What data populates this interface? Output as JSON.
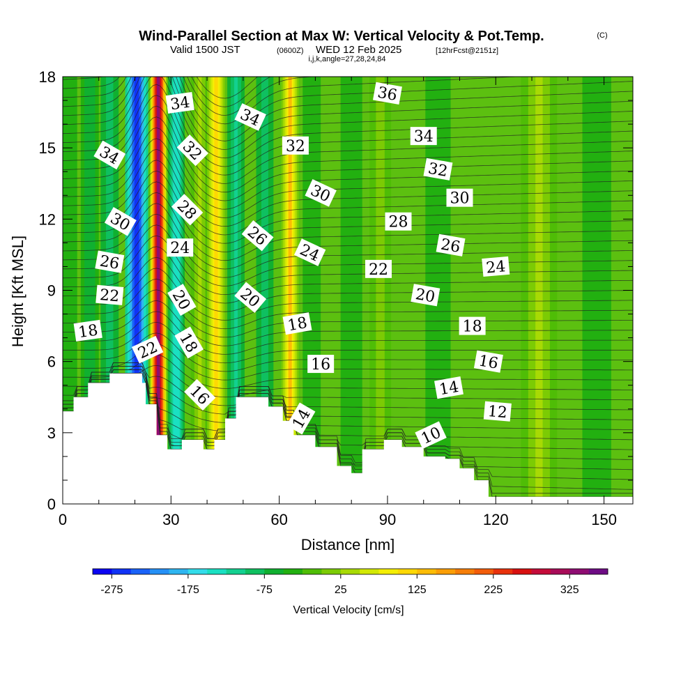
{
  "title": {
    "main": "Wind-Parallel Section at Max W: Vertical Velocity & Pot.Temp.",
    "copyright": "(C)",
    "valid_prefix": "Valid 1500 JST",
    "valid_utc": "(0600Z)",
    "valid_date": "WED 12 Feb 2025",
    "forecast": "[12hrFcst@2151z]",
    "indices": "i,j,k,angle=27,28,24,84"
  },
  "chart_data": {
    "type": "heatmap",
    "xlabel": "Distance [nm]",
    "ylabel": "Height [Kft MSL]",
    "xlim": [
      0,
      158
    ],
    "ylim": [
      0,
      18
    ],
    "x_ticks": [
      0,
      30,
      60,
      90,
      120,
      150
    ],
    "y_ticks": [
      0,
      3,
      6,
      9,
      12,
      15,
      18
    ],
    "colorbar": {
      "label": "Vertical Velocity [cm/s]",
      "min": -300,
      "step": 25,
      "tick_labels": [
        "-275",
        "-175",
        "-75",
        "25",
        "125",
        "225",
        "325"
      ],
      "tick_values": [
        -275,
        -175,
        -75,
        25,
        125,
        225,
        325
      ],
      "colors": [
        "#0b04f2",
        "#1033f6",
        "#1a62f8",
        "#2590f6",
        "#2eb5f0",
        "#33dcea",
        "#1ae0c2",
        "#13d090",
        "#0fc060",
        "#10b030",
        "#22b010",
        "#4fbd06",
        "#7ccb04",
        "#a8da04",
        "#d2e804",
        "#f4ee04",
        "#fed804",
        "#fcbc05",
        "#fa9e06",
        "#f67e08",
        "#f25c0a",
        "#e8310c",
        "#d81010",
        "#c40c3a",
        "#a80c58",
        "#8e0c72",
        "#6e0c84"
      ]
    },
    "terrain_profile_kft": [
      {
        "x": 0,
        "h": 3.9
      },
      {
        "x": 3,
        "h": 4.5
      },
      {
        "x": 7,
        "h": 5.1
      },
      {
        "x": 13,
        "h": 5.5
      },
      {
        "x": 19,
        "h": 5.5
      },
      {
        "x": 22,
        "h": 5.1
      },
      {
        "x": 23,
        "h": 4.2
      },
      {
        "x": 26,
        "h": 2.9
      },
      {
        "x": 29,
        "h": 2.3
      },
      {
        "x": 33,
        "h": 2.7
      },
      {
        "x": 39,
        "h": 2.3
      },
      {
        "x": 42,
        "h": 2.7
      },
      {
        "x": 45,
        "h": 3.6
      },
      {
        "x": 48,
        "h": 4.5
      },
      {
        "x": 57,
        "h": 4.1
      },
      {
        "x": 61,
        "h": 3.5
      },
      {
        "x": 64,
        "h": 2.9
      },
      {
        "x": 70,
        "h": 2.4
      },
      {
        "x": 76,
        "h": 1.6
      },
      {
        "x": 80,
        "h": 1.3
      },
      {
        "x": 83,
        "h": 2.3
      },
      {
        "x": 89,
        "h": 2.7
      },
      {
        "x": 94,
        "h": 2.4
      },
      {
        "x": 100,
        "h": 2.0
      },
      {
        "x": 106,
        "h": 1.9
      },
      {
        "x": 110,
        "h": 1.5
      },
      {
        "x": 114,
        "h": 1.0
      },
      {
        "x": 118,
        "h": 0.3
      },
      {
        "x": 158,
        "h": 0.3
      }
    ],
    "vertical_velocity_bands": [
      {
        "x": 2,
        "w": 2,
        "value": -40
      },
      {
        "x": 7.5,
        "w": 2.5,
        "value": -60
      },
      {
        "x": 13,
        "w": 2.5,
        "value": -90
      },
      {
        "x": 20.5,
        "w": 3.2,
        "value": -275
      },
      {
        "x": 26.5,
        "w": 2.2,
        "value": 340
      },
      {
        "x": 31.5,
        "w": 2.3,
        "value": -150
      },
      {
        "x": 38,
        "w": 2.5,
        "value": 30
      },
      {
        "x": 42.5,
        "w": 2.5,
        "value": 120
      },
      {
        "x": 48,
        "w": 2.4,
        "value": -110
      },
      {
        "x": 56,
        "w": 2.4,
        "value": -90
      },
      {
        "x": 63,
        "w": 2.4,
        "value": 130
      },
      {
        "x": 69,
        "w": 2.5,
        "value": -50
      },
      {
        "x": 80,
        "w": 3,
        "value": -30
      },
      {
        "x": 88,
        "w": 3,
        "value": 20
      },
      {
        "x": 104,
        "w": 3.5,
        "value": -35
      },
      {
        "x": 132,
        "w": 5,
        "value": 30
      },
      {
        "x": 148,
        "w": 4,
        "value": -30
      }
    ],
    "theta_contour_labels": [
      {
        "text": "34",
        "x": 13,
        "y": 14.7,
        "rot": 30
      },
      {
        "text": "30",
        "x": 16,
        "y": 11.9,
        "rot": 30
      },
      {
        "text": "26",
        "x": 13,
        "y": 10.2,
        "rot": 10
      },
      {
        "text": "22",
        "x": 13,
        "y": 8.8,
        "rot": 5
      },
      {
        "text": "18",
        "x": 7,
        "y": 7.3,
        "rot": -8
      },
      {
        "text": "22",
        "x": 23.5,
        "y": 6.5,
        "rot": -25
      },
      {
        "text": "34",
        "x": 32.5,
        "y": 16.9,
        "rot": -8
      },
      {
        "text": "32",
        "x": 36,
        "y": 14.9,
        "rot": 45
      },
      {
        "text": "28",
        "x": 34.5,
        "y": 12.4,
        "rot": 45
      },
      {
        "text": "24",
        "x": 32.5,
        "y": 10.8,
        "rot": 0
      },
      {
        "text": "20",
        "x": 33,
        "y": 8.6,
        "rot": 60
      },
      {
        "text": "18",
        "x": 35,
        "y": 6.8,
        "rot": 60
      },
      {
        "text": "16",
        "x": 38,
        "y": 4.6,
        "rot": 45
      },
      {
        "text": "34",
        "x": 52,
        "y": 16.3,
        "rot": 25
      },
      {
        "text": "32",
        "x": 64.5,
        "y": 15.1,
        "rot": 0
      },
      {
        "text": "26",
        "x": 54,
        "y": 11.3,
        "rot": 40
      },
      {
        "text": "20",
        "x": 52,
        "y": 8.7,
        "rot": 40
      },
      {
        "text": "30",
        "x": 71.5,
        "y": 13.1,
        "rot": 25
      },
      {
        "text": "24",
        "x": 68.5,
        "y": 10.6,
        "rot": 25
      },
      {
        "text": "18",
        "x": 65,
        "y": 7.6,
        "rot": -10
      },
      {
        "text": "16",
        "x": 71.5,
        "y": 5.9,
        "rot": 0
      },
      {
        "text": "14",
        "x": 66,
        "y": 3.6,
        "rot": -60
      },
      {
        "text": "36",
        "x": 90,
        "y": 17.3,
        "rot": 10
      },
      {
        "text": "34",
        "x": 100,
        "y": 15.5,
        "rot": 0
      },
      {
        "text": "32",
        "x": 104,
        "y": 14.1,
        "rot": 10
      },
      {
        "text": "28",
        "x": 93,
        "y": 11.9,
        "rot": 0
      },
      {
        "text": "30",
        "x": 110,
        "y": 12.9,
        "rot": 0
      },
      {
        "text": "22",
        "x": 87.5,
        "y": 9.9,
        "rot": 0
      },
      {
        "text": "26",
        "x": 107.5,
        "y": 10.9,
        "rot": 10
      },
      {
        "text": "20",
        "x": 100.5,
        "y": 8.8,
        "rot": 10
      },
      {
        "text": "24",
        "x": 120,
        "y": 10.0,
        "rot": -5
      },
      {
        "text": "18",
        "x": 113.5,
        "y": 7.5,
        "rot": 0
      },
      {
        "text": "16",
        "x": 118,
        "y": 6.0,
        "rot": 10
      },
      {
        "text": "14",
        "x": 107,
        "y": 4.9,
        "rot": -10
      },
      {
        "text": "12",
        "x": 120.5,
        "y": 3.9,
        "rot": 5
      },
      {
        "text": "10",
        "x": 102,
        "y": 2.9,
        "rot": -25
      }
    ]
  }
}
